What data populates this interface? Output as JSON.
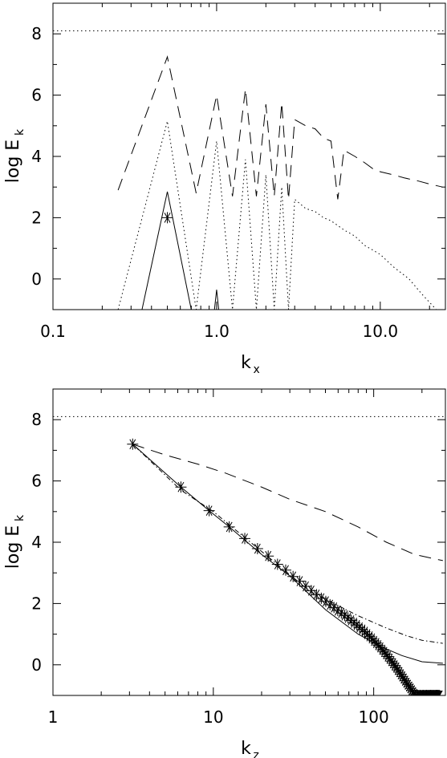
{
  "chart_data": [
    {
      "type": "line",
      "xscale": "log",
      "xlim": [
        0.1,
        25
      ],
      "ylim": [
        -1,
        9
      ],
      "xlabel": "k",
      "xlabel_sub": "x",
      "ylabel": "log E",
      "ylabel_sub": "k",
      "xticks": [
        0.1,
        1.0,
        10.0
      ],
      "xtick_labels": [
        "0.1",
        "1.0",
        "10.0"
      ],
      "yticks": [
        0,
        2,
        4,
        6,
        8
      ],
      "ytick_labels": [
        "0",
        "2",
        "4",
        "6",
        "8"
      ],
      "grid": false,
      "series": [
        {
          "style": "dotted",
          "color": "#000000",
          "x": [
            0.1,
            25
          ],
          "y": [
            8.1,
            8.1
          ]
        },
        {
          "style": "dashed",
          "color": "#000000",
          "x": [
            0.25,
            0.5,
            0.75,
            1.0,
            1.25,
            1.5,
            1.75,
            2.0,
            2.25,
            2.5,
            2.75,
            3.0,
            3.5,
            4.0,
            4.5,
            5.0,
            5.5,
            6.0,
            7.0,
            8.0,
            9.0,
            10.0,
            12.0,
            14.0,
            17.0,
            20.0,
            24.0
          ],
          "y": [
            2.9,
            7.25,
            2.8,
            6.0,
            2.7,
            6.2,
            2.7,
            5.7,
            2.7,
            5.75,
            2.6,
            5.2,
            5.0,
            4.9,
            4.6,
            4.5,
            2.6,
            4.2,
            4.0,
            3.8,
            3.6,
            3.5,
            3.4,
            3.3,
            3.2,
            3.1,
            3.0
          ]
        },
        {
          "style": "dotted",
          "color": "#000000",
          "x": [
            0.25,
            0.5,
            0.75,
            1.0,
            1.25,
            1.5,
            1.75,
            2.0,
            2.25,
            2.5,
            2.75,
            3.0,
            3.5,
            4.0,
            4.5,
            5.0,
            6.0,
            7.0,
            8.0,
            10.0,
            12.0,
            15.0,
            18.0,
            22.0
          ],
          "y": [
            -1.0,
            5.15,
            -1.0,
            4.5,
            -1.0,
            3.9,
            -1.0,
            3.4,
            -1.0,
            3.0,
            -1.0,
            2.6,
            2.3,
            2.2,
            2.0,
            1.9,
            1.6,
            1.4,
            1.1,
            0.8,
            0.4,
            0.0,
            -0.5,
            -1.0
          ]
        },
        {
          "style": "solid",
          "color": "#000000",
          "x": [
            0.35,
            0.5,
            0.7
          ],
          "y": [
            -1.0,
            2.85,
            -1.0
          ]
        },
        {
          "style": "solid",
          "color": "#000000",
          "x": [
            0.97,
            1.0,
            1.03
          ],
          "y": [
            -1.0,
            -0.35,
            -1.0
          ]
        },
        {
          "style": "asterisk",
          "color": "#000000",
          "x": [
            0.5
          ],
          "y": [
            2.0
          ]
        }
      ]
    },
    {
      "type": "line",
      "xscale": "log",
      "xlim": [
        1,
        280
      ],
      "ylim": [
        -1,
        9
      ],
      "xlabel": "k",
      "xlabel_sub": "z",
      "ylabel": "log E",
      "ylabel_sub": "k",
      "xticks": [
        1,
        10,
        100
      ],
      "xtick_labels": [
        "1",
        "10",
        "100"
      ],
      "yticks": [
        0,
        2,
        4,
        6,
        8
      ],
      "ytick_labels": [
        "0",
        "2",
        "4",
        "6",
        "8"
      ],
      "grid": false,
      "series": [
        {
          "style": "dotted",
          "color": "#000000",
          "x": [
            1,
            280
          ],
          "y": [
            8.1,
            8.1
          ]
        },
        {
          "style": "dashed",
          "color": "#000000",
          "x": [
            3.14,
            5,
            8,
            12,
            20,
            30,
            50,
            80,
            120,
            180,
            270
          ],
          "y": [
            7.2,
            6.85,
            6.55,
            6.25,
            5.8,
            5.4,
            5.0,
            4.5,
            4.0,
            3.6,
            3.4
          ]
        },
        {
          "style": "dashdot",
          "color": "#000000",
          "x": [
            3.14,
            6.28,
            10,
            20,
            40,
            80,
            120,
            160,
            200,
            270
          ],
          "y": [
            7.2,
            5.7,
            5.0,
            3.7,
            2.4,
            1.6,
            1.2,
            0.95,
            0.8,
            0.7
          ]
        },
        {
          "style": "solid",
          "color": "#000000",
          "x": [
            3.14,
            6.28,
            9.42,
            12.57,
            20,
            30,
            50,
            80,
            110,
            150,
            200,
            270
          ],
          "y": [
            7.2,
            5.8,
            5.03,
            4.5,
            3.6,
            2.9,
            1.8,
            1.0,
            0.6,
            0.3,
            0.1,
            0.05
          ]
        },
        {
          "style": "asterisk",
          "color": "#000000",
          "x": [
            3.14,
            6.28,
            9.42,
            12.57,
            15.71,
            18.85,
            21.99,
            25.13,
            28.27,
            31.42,
            34.56,
            37.7,
            40.84,
            43.98,
            47.12,
            50.27,
            53.41,
            56.55,
            59.69,
            62.83,
            65.97,
            69.12,
            72.26,
            75.4,
            78.54,
            81.68,
            84.82,
            87.96,
            91.11,
            94.25,
            97.39,
            100.53,
            103.67,
            106.81,
            109.96,
            113.1,
            116.24,
            119.38,
            122.52,
            125.66,
            128.81,
            131.95,
            135.09,
            138.23,
            141.37,
            144.51,
            147.65,
            150.8,
            153.94,
            157.08,
            160.22,
            163.36,
            166.5,
            169.65,
            172.79,
            175.93,
            179.07,
            182.21,
            185.35,
            188.5,
            191.64,
            194.78,
            197.92,
            201.06,
            204.2,
            207.35,
            210.49,
            213.63,
            216.77,
            219.91,
            223.05,
            226.19,
            229.34,
            232.48,
            235.62,
            238.76,
            241.9,
            245.04,
            248.19,
            251.33,
            254.47,
            257.61
          ],
          "y": [
            7.2,
            5.8,
            5.03,
            4.5,
            4.12,
            3.79,
            3.55,
            3.28,
            3.09,
            2.88,
            2.73,
            2.56,
            2.42,
            2.29,
            2.17,
            2.07,
            1.96,
            1.87,
            1.77,
            1.69,
            1.61,
            1.53,
            1.45,
            1.37,
            1.3,
            1.22,
            1.15,
            1.08,
            1.0,
            0.93,
            0.86,
            0.78,
            0.71,
            0.64,
            0.57,
            0.49,
            0.42,
            0.35,
            0.27,
            0.2,
            0.12,
            0.05,
            -0.02,
            -0.09,
            -0.17,
            -0.24,
            -0.31,
            -0.38,
            -0.45,
            -0.52,
            -0.59,
            -0.65,
            -0.71,
            -0.77,
            -0.83,
            -0.89,
            -0.95,
            -0.99,
            -1.0,
            -1.0,
            -1.0,
            -1.0,
            -1.0,
            -1.0,
            -1.0,
            -1.0,
            -1.0,
            -1.0,
            -1.0,
            -1.0,
            -1.0,
            -1.0,
            -1.0,
            -1.0,
            -1.0,
            -1.0,
            -1.0,
            -1.0,
            -1.0,
            -1.0,
            -1.0,
            -1.0
          ]
        }
      ]
    }
  ]
}
